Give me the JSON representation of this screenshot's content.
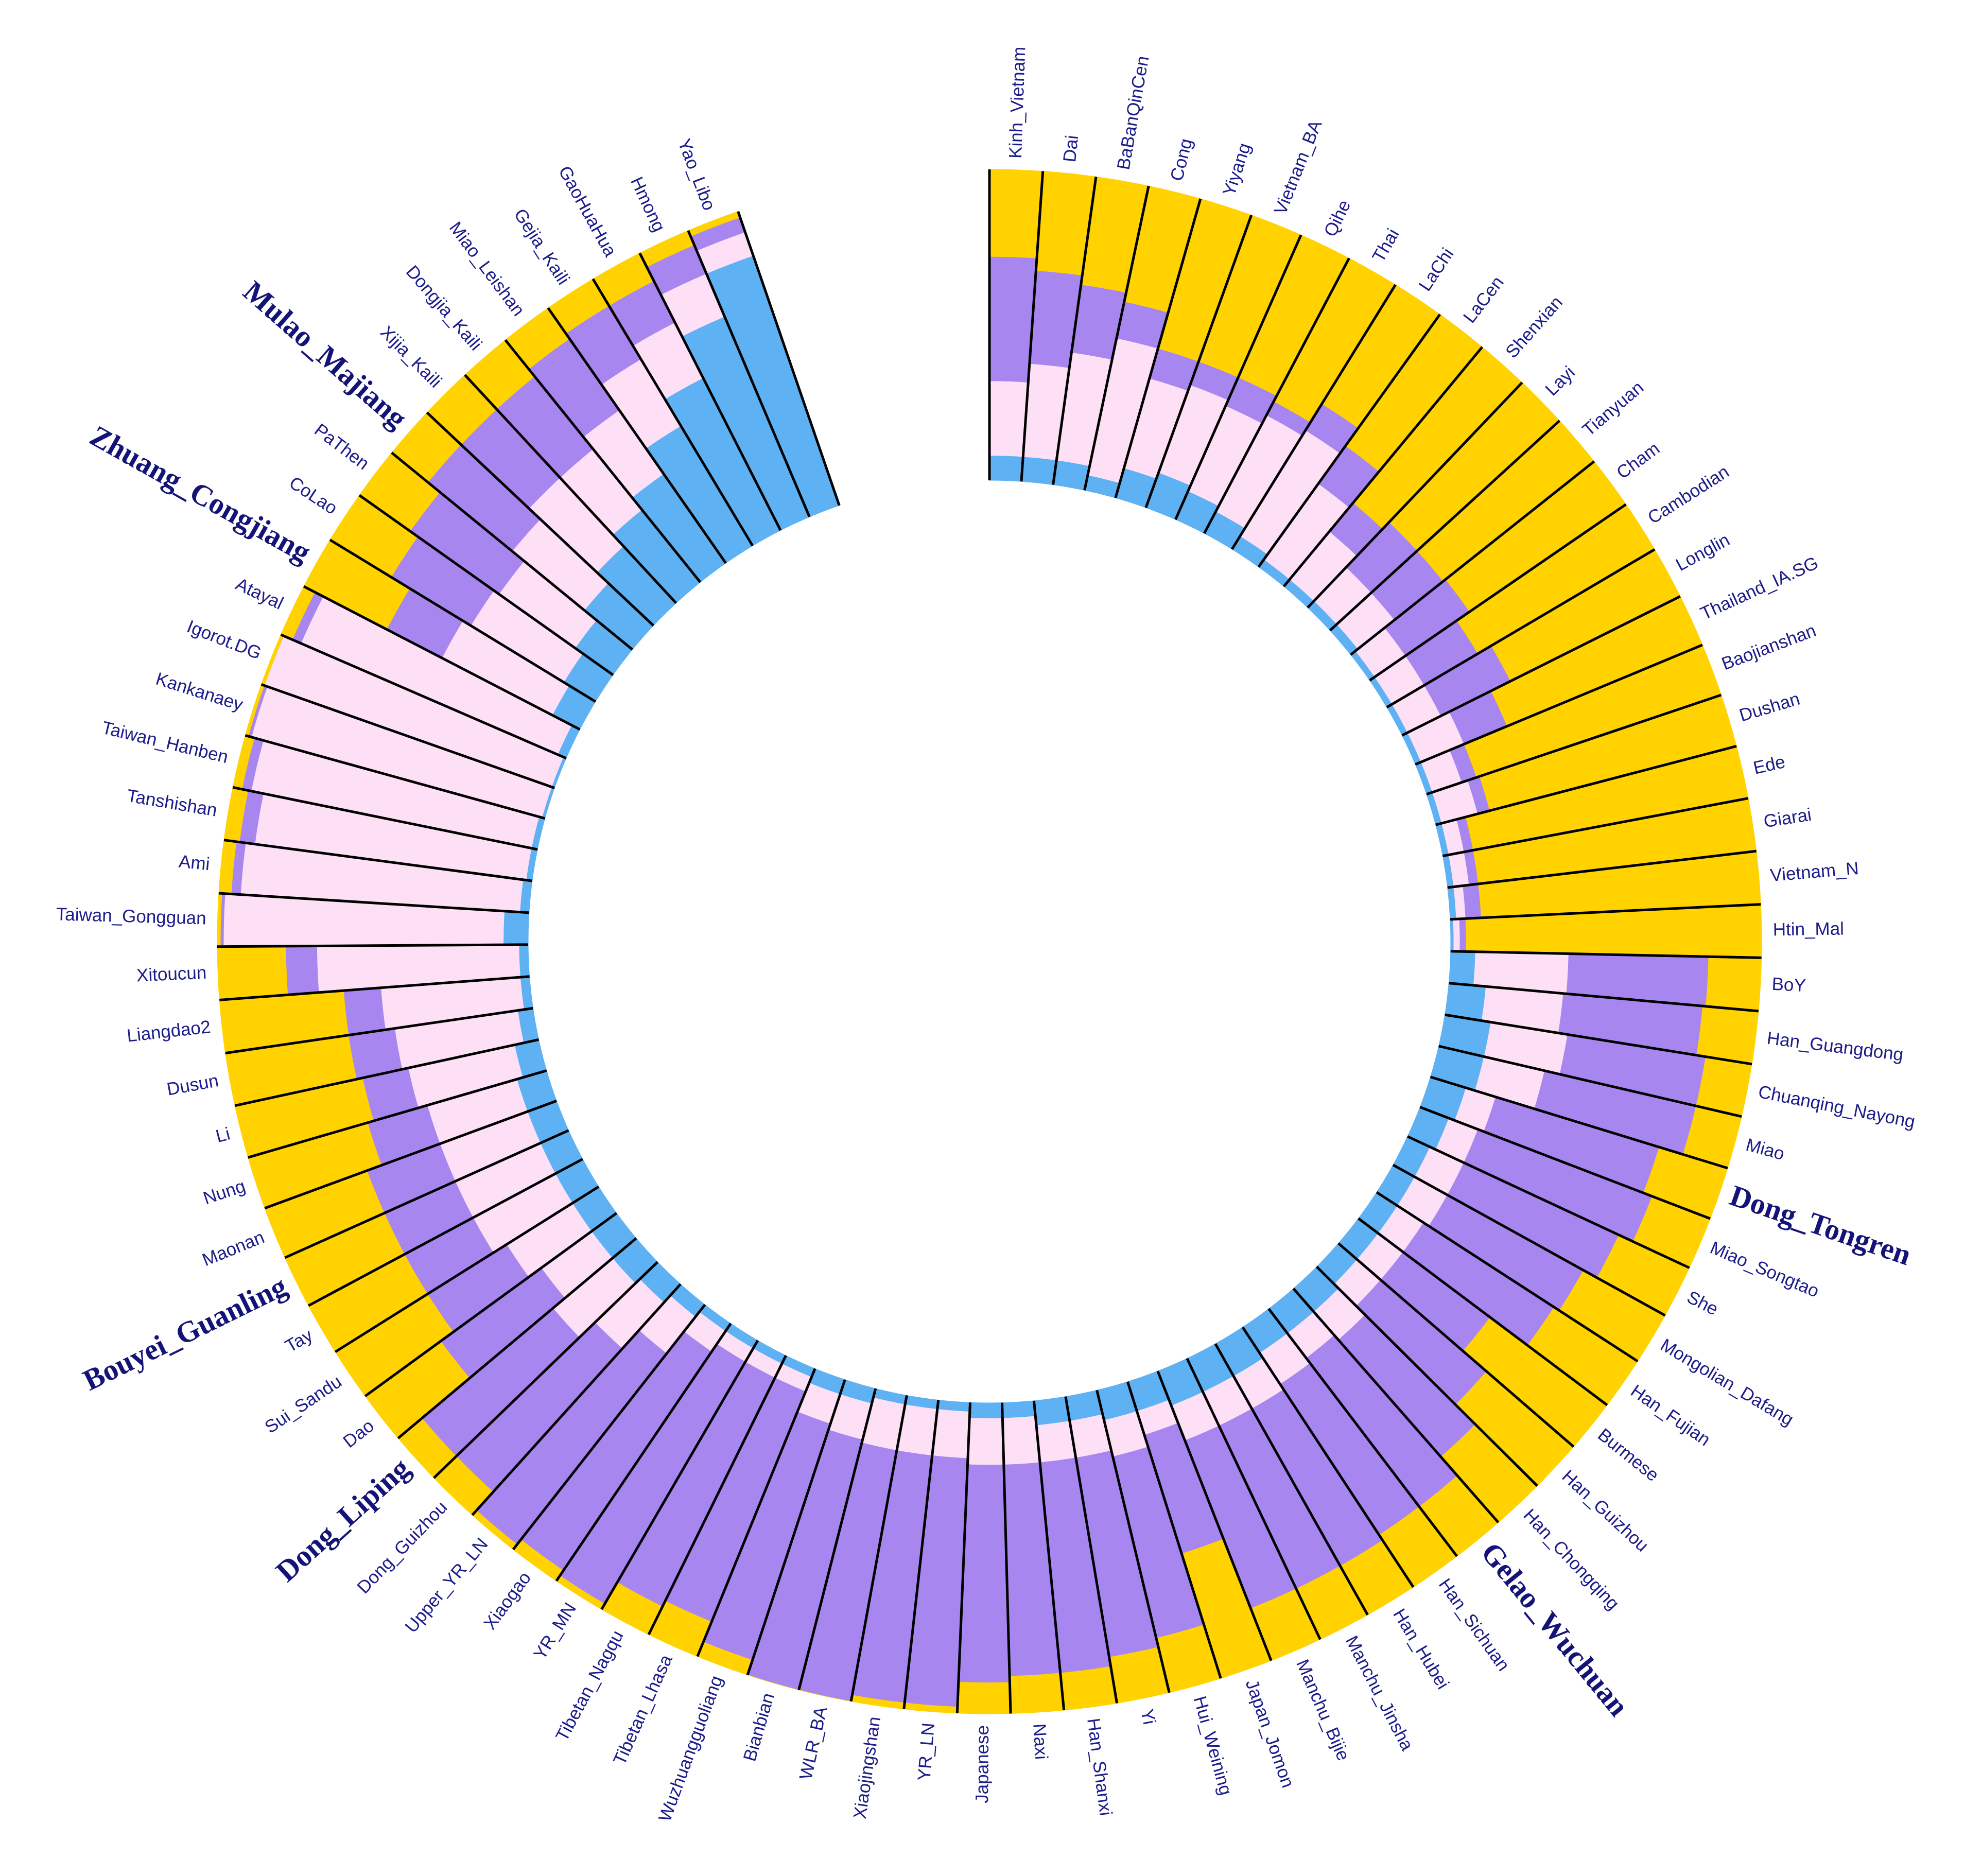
{
  "chart_data": {
    "type": "radial-stacked-bar",
    "categories": [
      "Kinh_Vietnam",
      "Dai",
      "BaBanQinCen",
      "Cong",
      "Yiyang",
      "Vietnam_BA",
      "Qihe",
      "Thai",
      "LaChi",
      "LaCen",
      "Shenxian",
      "Layi",
      "Tianyuan",
      "Cham",
      "Cambodian",
      "Longlin",
      "Thailand_IA.SG",
      "Baojianshan",
      "Dushan",
      "Ede",
      "Giarai",
      "Vietnam_N",
      "Htin_Mal",
      "BoY",
      "Han_Guangdong",
      "Chuanqing_Nayong",
      "Miao",
      "Dong_Tongren",
      "Miao_Songtao",
      "She",
      "Mongolian_Dafang",
      "Han_Fujian",
      "Burmese",
      "Han_Guizhou",
      "Han_Chongqing",
      "Gelao_Wuchuan",
      "Han_Sichuan",
      "Han_Hubei",
      "Manchu_Jinsha",
      "Manchu_Bijie",
      "Japan_Jomon",
      "Hui_Weining",
      "Yi",
      "Han_Shanxi",
      "Naxi",
      "Japanese",
      "YR_LN",
      "Xiaojingshan",
      "WLR_BA",
      "Bianbian",
      "Wuzhuangguoliang",
      "Tibetan_Lhasa",
      "Tibetan_Nagqu",
      "YR_MN",
      "Xiaogao",
      "Upper_YR_LN",
      "Dong_Guizhou",
      "Dong_Liping",
      "Dao",
      "Sui_Sandu",
      "Tay",
      "Bouyei_Guanling",
      "Maonan",
      "Nung",
      "Li",
      "Dusun",
      "Liangdao2",
      "Xitoucun",
      "Taiwan_Gongguan",
      "Ami",
      "Tanshishan",
      "Taiwan_Hanben",
      "Kankanaey",
      "Igorot.DG",
      "Atayal",
      "Zhuang_Congjiang",
      "CoLao",
      "PaThen",
      "Mulao_Majiang",
      "Xijia_Kaili",
      "Dongjia_Kaili",
      "Miao_Leishan",
      "Gejia_Kaili",
      "GaoHuaHua",
      "Hmong",
      "Yao_Libo"
    ],
    "emphasized": [
      27,
      35,
      57,
      61,
      75,
      78
    ],
    "ylim": [
      0,
      100
    ],
    "series": [
      {
        "color": "#5eb1f3",
        "values": [
          8,
          8,
          8,
          5,
          10,
          12,
          10,
          8,
          5,
          3,
          3,
          3,
          3,
          2,
          2,
          2,
          2,
          2,
          2,
          2,
          2,
          2,
          1,
          8,
          12,
          15,
          15,
          12,
          10,
          8,
          8,
          8,
          8,
          8,
          10,
          10,
          10,
          12,
          12,
          12,
          10,
          10,
          8,
          8,
          5,
          5,
          3,
          3,
          3,
          5,
          5,
          3,
          3,
          3,
          3,
          5,
          8,
          10,
          10,
          10,
          10,
          10,
          10,
          10,
          8,
          5,
          3,
          3,
          8,
          3,
          2,
          2,
          1,
          1,
          3,
          10,
          12,
          15,
          20,
          25,
          30,
          35,
          45,
          55,
          70,
          85
        ]
      },
      {
        "color": "#fde0f6",
        "values": [
          24,
          30,
          35,
          45,
          30,
          30,
          30,
          35,
          40,
          30,
          20,
          15,
          15,
          12,
          12,
          12,
          15,
          10,
          12,
          5,
          5,
          3,
          2,
          30,
          25,
          25,
          20,
          10,
          10,
          12,
          12,
          10,
          10,
          10,
          12,
          10,
          12,
          12,
          12,
          12,
          8,
          12,
          12,
          12,
          15,
          15,
          15,
          15,
          15,
          12,
          10,
          5,
          5,
          5,
          8,
          15,
          20,
          25,
          20,
          25,
          30,
          30,
          30,
          30,
          35,
          40,
          45,
          65,
          90,
          90,
          88,
          92,
          97,
          98,
          90,
          40,
          35,
          30,
          30,
          30,
          25,
          25,
          25,
          20,
          15,
          8
        ]
      },
      {
        "color": "#a886f0",
        "values": [
          40,
          30,
          22,
          12,
          10,
          8,
          10,
          5,
          10,
          15,
          12,
          20,
          20,
          25,
          20,
          25,
          15,
          5,
          4,
          3,
          3,
          5,
          2,
          45,
          45,
          45,
          50,
          55,
          60,
          55,
          50,
          50,
          35,
          45,
          50,
          60,
          58,
          58,
          58,
          58,
          40,
          60,
          65,
          68,
          68,
          70,
          80,
          80,
          82,
          83,
          80,
          80,
          82,
          90,
          85,
          78,
          62,
          55,
          40,
          30,
          25,
          25,
          25,
          20,
          15,
          15,
          12,
          10,
          1,
          3,
          5,
          3,
          1,
          0,
          3,
          20,
          30,
          35,
          35,
          30,
          30,
          28,
          20,
          15,
          10,
          5
        ]
      },
      {
        "color": "#ffd200",
        "values": [
          28,
          32,
          35,
          38,
          50,
          50,
          50,
          52,
          45,
          52,
          65,
          62,
          62,
          61,
          66,
          61,
          68,
          83,
          82,
          90,
          90,
          90,
          95,
          17,
          18,
          15,
          15,
          23,
          20,
          25,
          30,
          32,
          47,
          37,
          28,
          20,
          20,
          18,
          18,
          18,
          42,
          18,
          15,
          12,
          12,
          10,
          2,
          2,
          0,
          0,
          5,
          12,
          10,
          2,
          4,
          2,
          10,
          10,
          30,
          35,
          35,
          35,
          35,
          40,
          42,
          40,
          40,
          22,
          1,
          4,
          5,
          3,
          1,
          1,
          4,
          30,
          23,
          20,
          15,
          15,
          15,
          12,
          10,
          10,
          5,
          2
        ]
      }
    ]
  }
}
